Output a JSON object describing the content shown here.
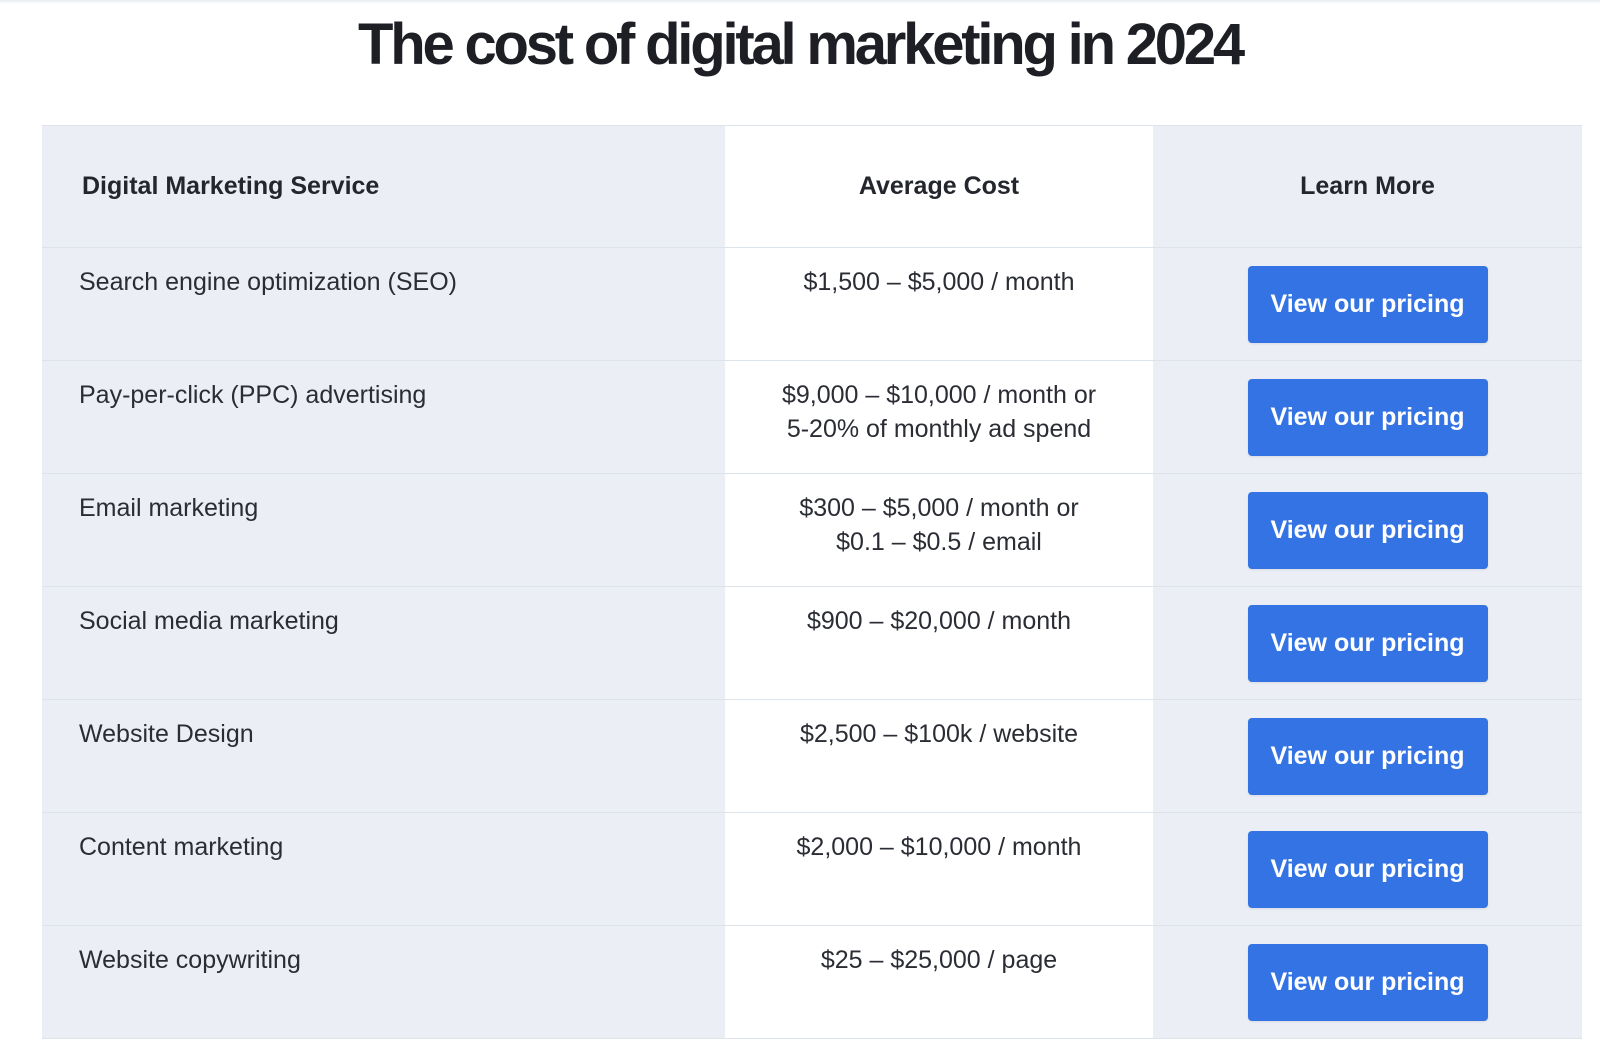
{
  "page": {
    "title": "The cost of digital marketing in 2024"
  },
  "table": {
    "headers": {
      "service": "Digital Marketing Service",
      "cost": "Average Cost",
      "learn": "Learn More"
    },
    "rows": [
      {
        "service": "Search engine optimization (SEO)",
        "cost": [
          "$1,500 – $5,000 / month"
        ],
        "button": "View our pricing"
      },
      {
        "service": "Pay-per-click (PPC) advertising",
        "cost": [
          "$9,000 – $10,000 / month or",
          "5-20% of monthly ad spend"
        ],
        "button": "View our pricing"
      },
      {
        "service": "Email marketing",
        "cost": [
          "$300 – $5,000 / month or",
          "$0.1 – $0.5 / email"
        ],
        "button": "View our pricing"
      },
      {
        "service": "Social media marketing",
        "cost": [
          "$900 – $20,000 / month"
        ],
        "button": "View our pricing"
      },
      {
        "service": "Website Design",
        "cost": [
          "$2,500 – $100k / website"
        ],
        "button": "View our pricing"
      },
      {
        "service": "Content marketing",
        "cost": [
          "$2,000 – $10,000 / month"
        ],
        "button": "View our pricing"
      },
      {
        "service": "Website copywriting",
        "cost": [
          "$25 – $25,000 / page"
        ],
        "button": "View our pricing"
      }
    ]
  },
  "colors": {
    "accent": "#3473e3",
    "shaded_column": "#ebeff5",
    "border": "#dde3ea",
    "text": "#23262d"
  }
}
